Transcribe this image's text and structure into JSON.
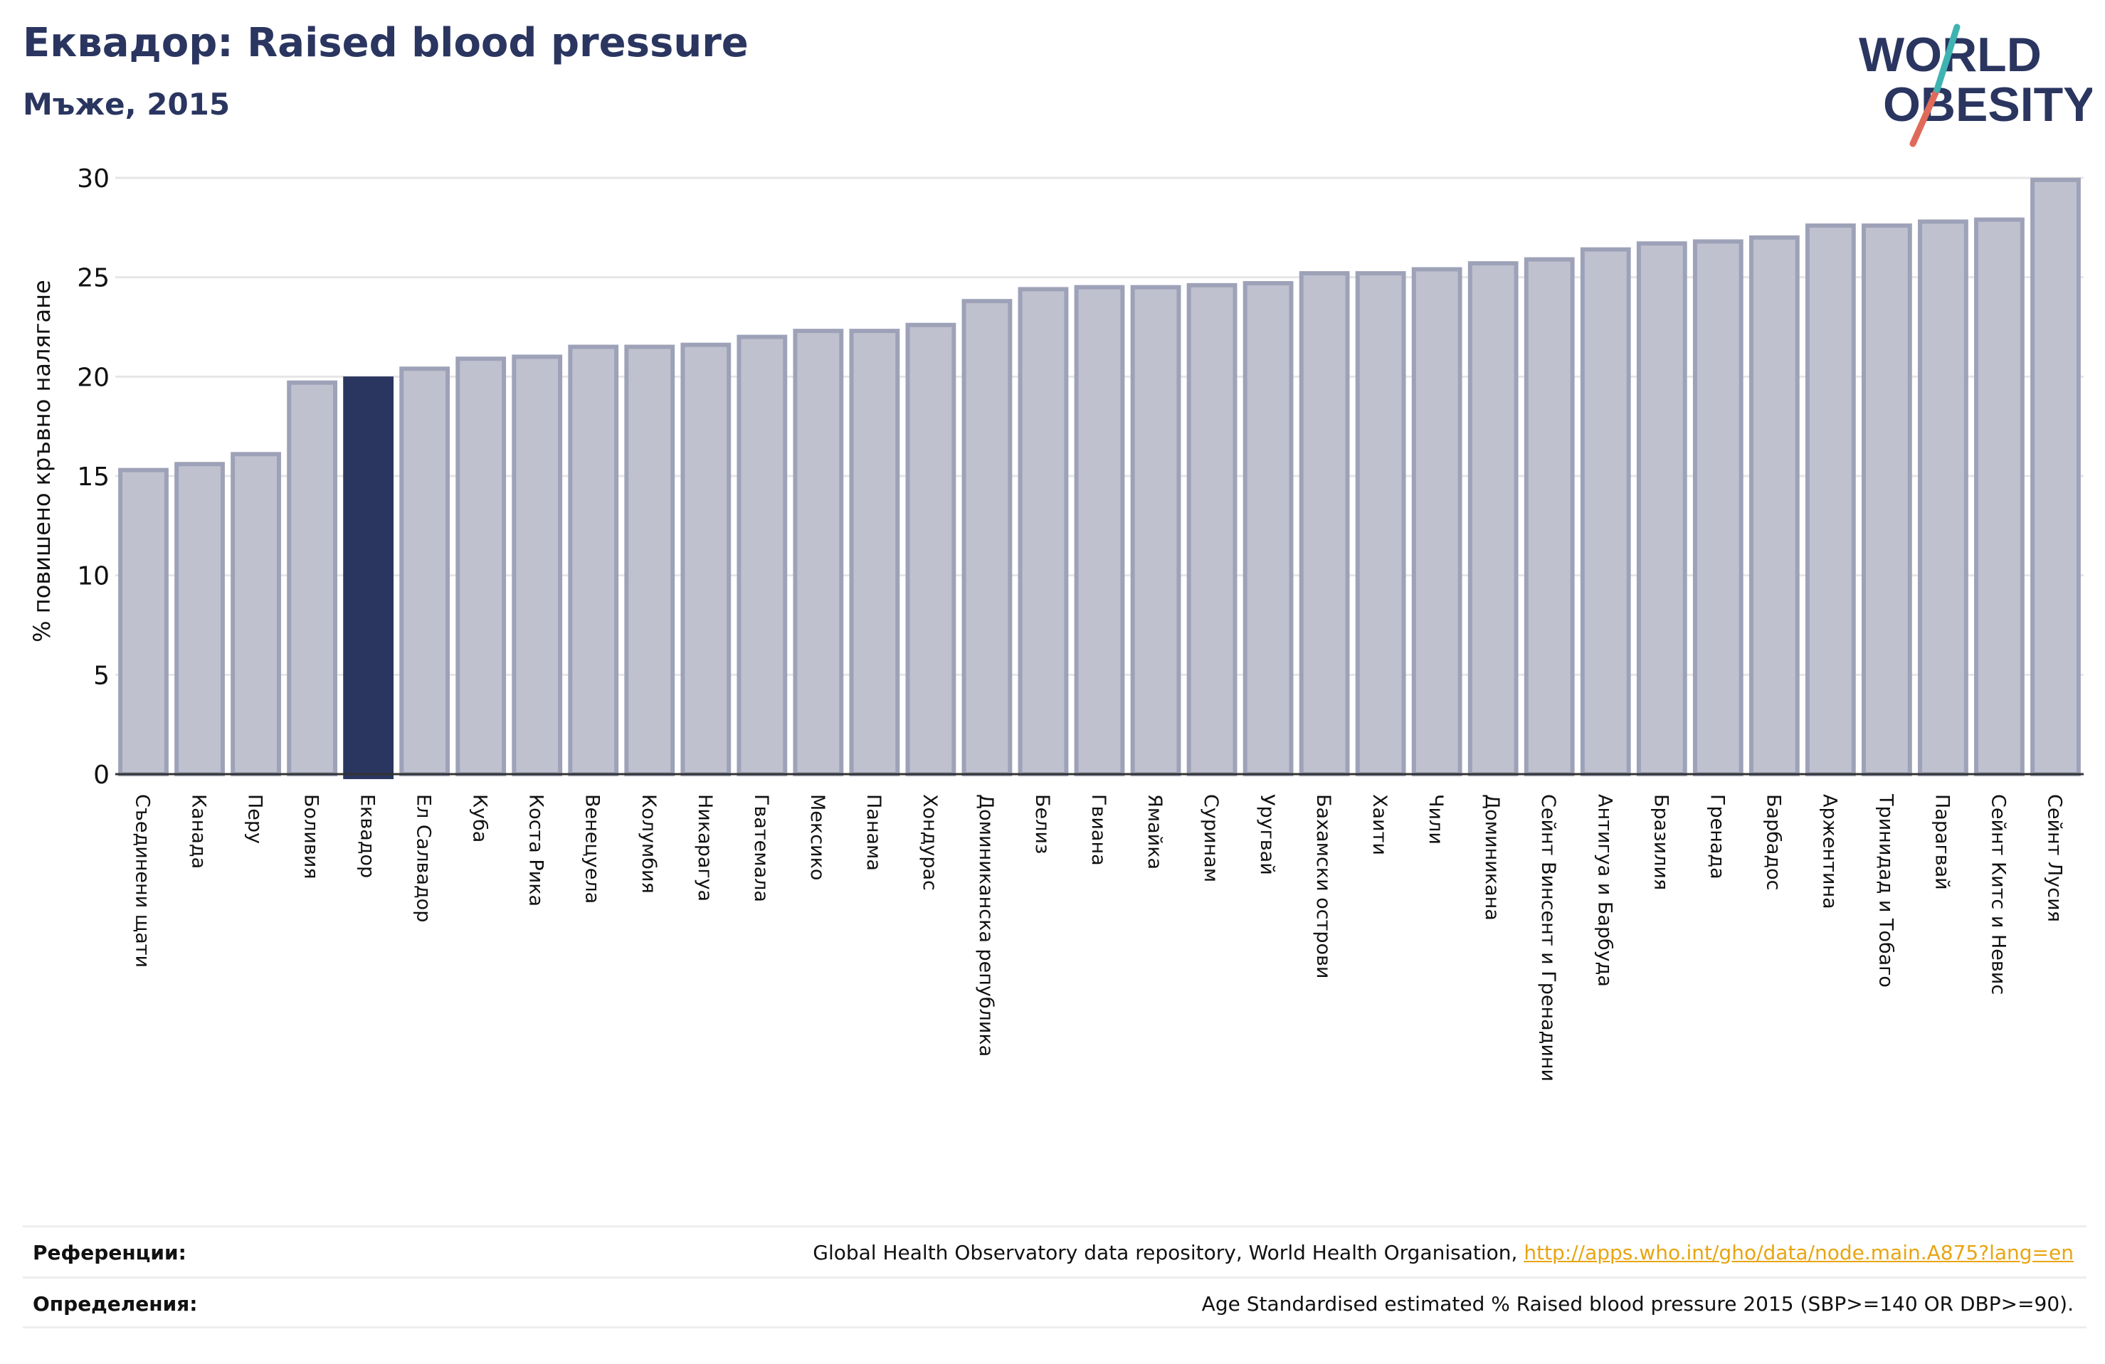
{
  "title": "Еквадор: Raised blood pressure",
  "subtitle": "Мъже, 2015",
  "logo": {
    "line1": "WORLD",
    "line2": "OBESITY"
  },
  "colors": {
    "highlight": "#2a3560",
    "bar": "#bfc1cf",
    "barEdge": "#9ea2b8",
    "text": "#2a3560",
    "link": "#e8a511",
    "logoSlash1": "#3fb3b2",
    "logoSlash2": "#e06a5a"
  },
  "chart_data": {
    "type": "bar",
    "ylabel": "% повишено кръвно налягане",
    "ylim": [
      0,
      30
    ],
    "yticks": [
      0,
      5,
      10,
      15,
      20,
      25,
      30
    ],
    "grid": true,
    "highlight": "Еквадор",
    "categories": [
      "Съединени щати",
      "Канада",
      "Перу",
      "Боливия",
      "Еквадор",
      "Ел Салвадор",
      "Куба",
      "Коста Рика",
      "Венецуела",
      "Колумбия",
      "Никарагуа",
      "Гватемала",
      "Мексико",
      "Панама",
      "Хондурас",
      "Доминиканска република",
      "Белиз",
      "Гвиана",
      "Ямайка",
      "Суринам",
      "Уругвай",
      "Бахамски острови",
      "Хаити",
      "Чили",
      "Доминикана",
      "Сейнт Винсент и Гренадини",
      "Антигуа и Барбуда",
      "Бразилия",
      "Гренада",
      "Барбадос",
      "Аржентина",
      "Тринидад и Тобаго",
      "Парагвай",
      "Сейнт Китс и Невис",
      "Сейнт Лусия"
    ],
    "values": [
      15.3,
      15.6,
      16.1,
      19.7,
      19.9,
      20.4,
      20.9,
      21.0,
      21.5,
      21.5,
      21.6,
      22.0,
      22.3,
      22.3,
      22.6,
      23.8,
      24.4,
      24.5,
      24.5,
      24.6,
      24.7,
      25.2,
      25.2,
      25.4,
      25.7,
      25.9,
      26.4,
      26.7,
      26.8,
      27.0,
      27.6,
      27.6,
      27.8,
      27.9,
      29.9
    ]
  },
  "footer": {
    "references_label": "Референции:",
    "references_text": "Global Health Observatory data repository, World Health Organisation,",
    "references_link": "http://apps.who.int/gho/data/node.main.A875?lang=en",
    "definitions_label": "Определения:",
    "definitions_text": "Age Standardised estimated % Raised blood pressure 2015 (SBP>=140 OR DBP>=90)."
  }
}
